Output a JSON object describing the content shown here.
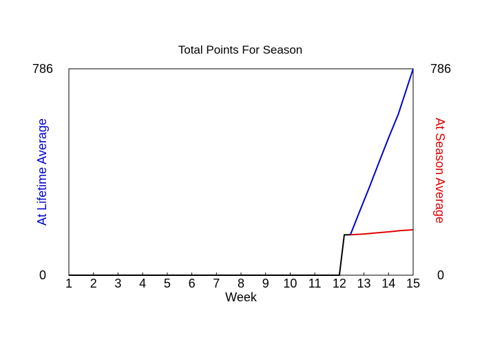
{
  "chart_data": {
    "type": "line",
    "title": "Total Points For Season",
    "xlabel": "Week",
    "ylabel_left": "At Lifetime Average",
    "ylabel_right": "At Season Average",
    "x_ticks": [
      "1",
      "2",
      "3",
      "4",
      "5",
      "6",
      "7",
      "8",
      "9",
      "10",
      "11",
      "12",
      "13",
      "14",
      "15"
    ],
    "xlim": [
      1,
      15
    ],
    "ylim": [
      0,
      786
    ],
    "y_ticks_left": [
      "0",
      "786"
    ],
    "y_ticks_right": [
      "0",
      "786"
    ],
    "series": [
      {
        "color": "#000000",
        "points": [
          [
            1,
            0
          ],
          [
            12,
            0
          ],
          [
            12.2,
            154
          ],
          [
            12.45,
            154
          ]
        ]
      },
      {
        "color": "#0000cc",
        "points": [
          [
            12.45,
            154
          ],
          [
            12.8,
            237
          ],
          [
            13.2,
            330
          ],
          [
            13.6,
            427
          ],
          [
            14.0,
            523
          ],
          [
            14.4,
            614
          ],
          [
            14.8,
            729
          ],
          [
            15,
            786
          ]
        ]
      },
      {
        "color": "#dd0000",
        "points": [
          [
            12.45,
            154
          ],
          [
            13.0,
            157
          ],
          [
            13.5,
            161
          ],
          [
            14.0,
            165
          ],
          [
            14.5,
            170
          ],
          [
            15,
            173
          ]
        ]
      }
    ],
    "colors": {
      "left_axis_label": "#0000cc",
      "right_axis_label": "#dd0000"
    },
    "grid": false,
    "legend": "none"
  }
}
